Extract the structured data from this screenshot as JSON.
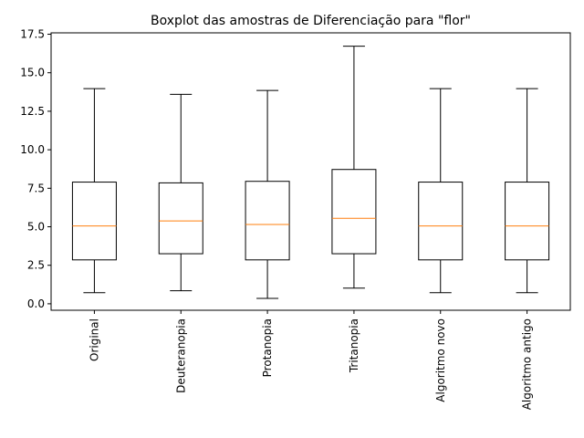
{
  "chart_data": {
    "type": "boxplot",
    "title": "Boxplot das amostras de Diferenciação para \"flor\"",
    "xlabel": "",
    "ylabel": "",
    "ylim": [
      -0.42,
      17.59
    ],
    "yticks": [
      0.0,
      2.5,
      5.0,
      7.5,
      10.0,
      12.5,
      15.0,
      17.5
    ],
    "ytick_labels": [
      "0.0",
      "2.5",
      "5.0",
      "7.5",
      "10.0",
      "12.5",
      "15.0",
      "17.5"
    ],
    "grid": false,
    "categories": [
      "Original",
      "Deuteranopia",
      "Protanopia",
      "Tritanopia",
      "Algoritmo novo",
      "Algoritmo antigo"
    ],
    "boxes": [
      {
        "label": "Original",
        "whisker_low": 0.72,
        "q1": 2.85,
        "median": 5.05,
        "q3": 7.9,
        "whisker_high": 13.97
      },
      {
        "label": "Deuteranopia",
        "whisker_low": 0.85,
        "q1": 3.25,
        "median": 5.38,
        "q3": 7.85,
        "whisker_high": 13.6
      },
      {
        "label": "Protanopia",
        "whisker_low": 0.35,
        "q1": 2.85,
        "median": 5.15,
        "q3": 7.95,
        "whisker_high": 13.85
      },
      {
        "label": "Tritanopia",
        "whisker_low": 1.02,
        "q1": 3.25,
        "median": 5.55,
        "q3": 8.72,
        "whisker_high": 16.72
      },
      {
        "label": "Algoritmo novo",
        "whisker_low": 0.72,
        "q1": 2.85,
        "median": 5.05,
        "q3": 7.9,
        "whisker_high": 13.97
      },
      {
        "label": "Algoritmo antigo",
        "whisker_low": 0.72,
        "q1": 2.85,
        "median": 5.05,
        "q3": 7.9,
        "whisker_high": 13.97
      }
    ],
    "colors": {
      "box": "#000000",
      "median": "#ff7f0e",
      "axes": "#000000",
      "background": "#ffffff"
    }
  }
}
